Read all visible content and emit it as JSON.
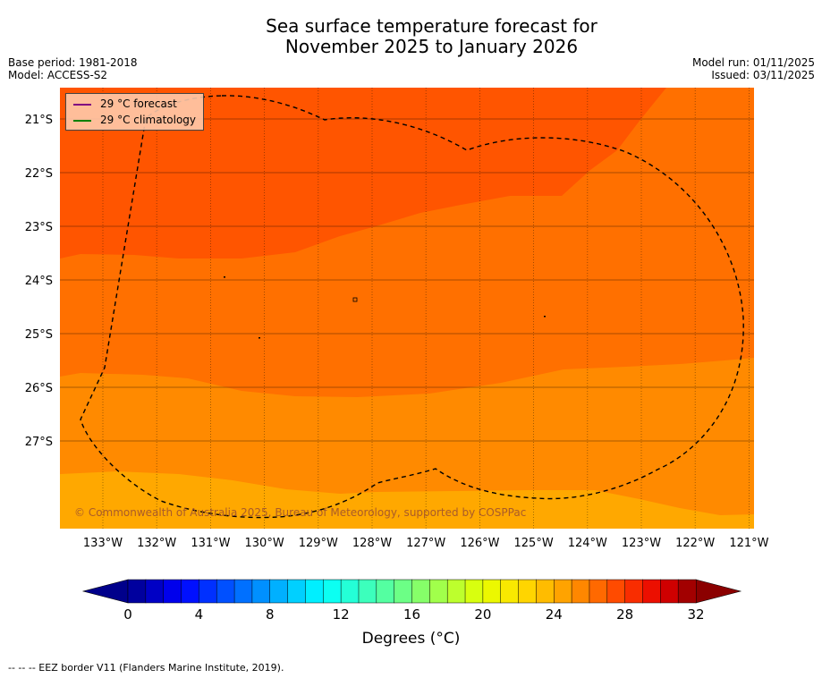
{
  "title_line1": "Sea surface temperature forecast for",
  "title_line2": "November 2025 to January 2026",
  "base_period": "Base period: 1981-2018",
  "model": "Model: ACCESS-S2",
  "model_run": "Model run: 01/11/2025",
  "issued": "Issued: 03/11/2025",
  "legend": [
    {
      "label": "29 °C  forecast",
      "color": "#800080"
    },
    {
      "label": "29 °C  climatology",
      "color": "#008000"
    }
  ],
  "lat_labels": [
    "21°S",
    "22°S",
    "23°S",
    "24°S",
    "25°S",
    "26°S",
    "27°S"
  ],
  "lon_labels": [
    "133°W",
    "132°W",
    "131°W",
    "130°W",
    "129°W",
    "128°W",
    "127°W",
    "126°W",
    "125°W",
    "124°W",
    "123°W",
    "122°W",
    "121°W"
  ],
  "copyright": "© Commonwealth of Australia 2025, Bureau of Meteorology, supported by COSPPac",
  "colorbar": {
    "ticks": [
      "0",
      "4",
      "8",
      "12",
      "16",
      "20",
      "24",
      "28",
      "32"
    ],
    "min": 0,
    "max": 32,
    "step": 1,
    "low_extend_color": "#00008b",
    "high_extend_color": "#8b0000"
  },
  "units_label": "Degrees (°C)",
  "footnote": "--  --  -- EEZ border V11 (Flanders Marine Institute, 2019).",
  "colors": {
    "band_28_29": "#ff5500",
    "band_27_28": "#ff7000",
    "band_26_27": "#ff8a00",
    "band_25_26": "#ffa800"
  }
}
